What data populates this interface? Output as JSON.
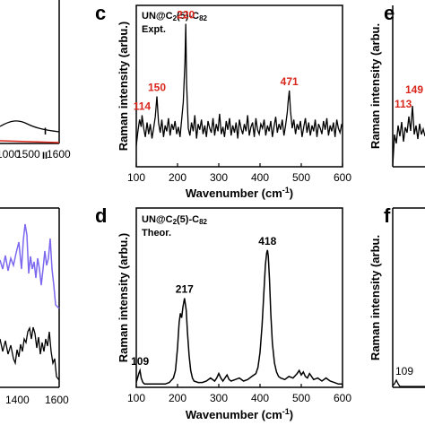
{
  "panel_labels": {
    "c": "c",
    "d": "d",
    "e": "e",
    "f": "f"
  },
  "left_partial": {
    "top_ticks": [
      "1000",
      "1500",
      "1600"
    ],
    "bottom_ticks": [
      "1400",
      "1600"
    ],
    "curve_labels": [
      "I",
      "II"
    ],
    "colors": {
      "curve_I": "#000000",
      "curve_II": "#d9261c",
      "purple": "#7b68ee"
    }
  },
  "right_partial": {
    "e_peaks": [
      "113",
      "149"
    ],
    "f_peaks": [
      "109"
    ],
    "ylabel": "Raman intensity (arbu."
  },
  "chart_data": [
    {
      "type": "line",
      "panel": "c",
      "title_lines": [
        "UN@C2(5)-C82",
        "Expt."
      ],
      "xlabel": "Wavenumber (cm⁻¹)",
      "ylabel": "Raman intensity (arbu.)",
      "xlim": [
        100,
        600
      ],
      "xticks": [
        100,
        200,
        300,
        400,
        500,
        600
      ],
      "peak_labels": [
        {
          "x": 114,
          "text": "114"
        },
        {
          "x": 150,
          "text": "150"
        },
        {
          "x": 220,
          "text": "220"
        },
        {
          "x": 471,
          "text": "471"
        }
      ],
      "peak_label_color": "#d9261c",
      "line_color": "#000000",
      "series": [
        {
          "x": [
            100,
            104,
            108,
            112,
            114,
            118,
            122,
            126,
            130,
            134,
            138,
            142,
            146,
            150,
            154,
            158,
            162,
            166,
            170,
            174,
            178,
            182,
            186,
            190,
            194,
            198,
            202,
            206,
            210,
            214,
            218,
            220,
            222,
            226,
            230,
            234,
            238,
            242,
            246,
            250,
            254,
            258,
            262,
            266,
            270,
            274,
            278,
            282,
            286,
            290,
            294,
            298,
            302,
            306,
            310,
            314,
            318,
            322,
            326,
            330,
            334,
            338,
            342,
            346,
            350,
            354,
            358,
            362,
            366,
            370,
            374,
            378,
            382,
            386,
            390,
            394,
            398,
            402,
            406,
            410,
            414,
            418,
            422,
            426,
            430,
            434,
            438,
            442,
            446,
            450,
            454,
            458,
            462,
            466,
            468,
            471,
            474,
            478,
            482,
            486,
            490,
            494,
            498,
            502,
            506,
            510,
            514,
            518,
            522,
            526,
            530,
            534,
            538,
            542,
            546,
            550,
            554,
            558,
            562,
            566,
            570,
            574,
            578,
            582,
            586,
            590,
            594,
            598,
            600
          ],
          "y": [
            0.12,
            0.22,
            0.3,
            0.25,
            0.33,
            0.24,
            0.18,
            0.28,
            0.2,
            0.27,
            0.17,
            0.24,
            0.32,
            0.46,
            0.28,
            0.21,
            0.3,
            0.18,
            0.26,
            0.22,
            0.31,
            0.19,
            0.27,
            0.23,
            0.29,
            0.2,
            0.25,
            0.18,
            0.3,
            0.42,
            0.7,
            0.96,
            0.55,
            0.24,
            0.19,
            0.28,
            0.22,
            0.33,
            0.17,
            0.27,
            0.23,
            0.3,
            0.2,
            0.26,
            0.18,
            0.29,
            0.24,
            0.21,
            0.31,
            0.19,
            0.27,
            0.22,
            0.34,
            0.2,
            0.25,
            0.18,
            0.29,
            0.23,
            0.31,
            0.19,
            0.26,
            0.21,
            0.28,
            0.17,
            0.3,
            0.24,
            0.2,
            0.27,
            0.22,
            0.33,
            0.19,
            0.25,
            0.28,
            0.18,
            0.31,
            0.23,
            0.2,
            0.27,
            0.24,
            0.3,
            0.19,
            0.26,
            0.22,
            0.29,
            0.18,
            0.25,
            0.32,
            0.21,
            0.27,
            0.23,
            0.3,
            0.19,
            0.26,
            0.35,
            0.42,
            0.5,
            0.36,
            0.24,
            0.3,
            0.2,
            0.27,
            0.23,
            0.29,
            0.18,
            0.25,
            0.31,
            0.21,
            0.28,
            0.19,
            0.26,
            0.22,
            0.3,
            0.18,
            0.27,
            0.24,
            0.2,
            0.29,
            0.23,
            0.31,
            0.19,
            0.26,
            0.22,
            0.28,
            0.18,
            0.3,
            0.24,
            0.21,
            0.27,
            0.25
          ]
        }
      ]
    },
    {
      "type": "line",
      "panel": "d",
      "title_lines": [
        "UN@C2(5)-C82",
        "Theor."
      ],
      "xlabel": "Wavenumber (cm⁻¹)",
      "ylabel": "Raman intensity (arbu.)",
      "xlim": [
        100,
        600
      ],
      "xticks": [
        100,
        200,
        300,
        400,
        500,
        600
      ],
      "peak_labels": [
        {
          "x": 109,
          "text": "109"
        },
        {
          "x": 217,
          "text": "217"
        },
        {
          "x": 418,
          "text": "418"
        }
      ],
      "peak_label_color": "#000000",
      "line_color": "#000000",
      "series": [
        {
          "x": [
            100,
            103,
            106,
            109,
            112,
            116,
            120,
            130,
            140,
            150,
            160,
            170,
            180,
            190,
            195,
            200,
            204,
            207,
            210,
            213,
            217,
            221,
            224,
            228,
            232,
            236,
            240,
            250,
            260,
            270,
            280,
            290,
            295,
            300,
            305,
            310,
            315,
            320,
            325,
            330,
            340,
            350,
            360,
            370,
            380,
            390,
            395,
            400,
            405,
            410,
            413,
            416,
            418,
            420,
            423,
            426,
            430,
            435,
            440,
            445,
            450,
            460,
            470,
            480,
            490,
            495,
            500,
            505,
            510,
            515,
            520,
            525,
            530,
            540,
            550,
            560,
            570,
            580,
            590,
            600
          ],
          "y": [
            0.02,
            0.05,
            0.08,
            0.1,
            0.05,
            0.02,
            0.01,
            0.01,
            0.01,
            0.01,
            0.01,
            0.01,
            0.02,
            0.05,
            0.1,
            0.25,
            0.42,
            0.48,
            0.45,
            0.52,
            0.58,
            0.5,
            0.36,
            0.2,
            0.1,
            0.05,
            0.03,
            0.02,
            0.02,
            0.03,
            0.05,
            0.03,
            0.05,
            0.08,
            0.05,
            0.03,
            0.05,
            0.07,
            0.04,
            0.03,
            0.04,
            0.05,
            0.03,
            0.04,
            0.06,
            0.08,
            0.12,
            0.22,
            0.4,
            0.65,
            0.8,
            0.88,
            0.9,
            0.86,
            0.7,
            0.48,
            0.28,
            0.15,
            0.09,
            0.06,
            0.05,
            0.04,
            0.06,
            0.05,
            0.08,
            0.1,
            0.07,
            0.09,
            0.06,
            0.05,
            0.08,
            0.06,
            0.04,
            0.05,
            0.03,
            0.05,
            0.03,
            0.02,
            0.01,
            0.01
          ]
        }
      ]
    }
  ]
}
